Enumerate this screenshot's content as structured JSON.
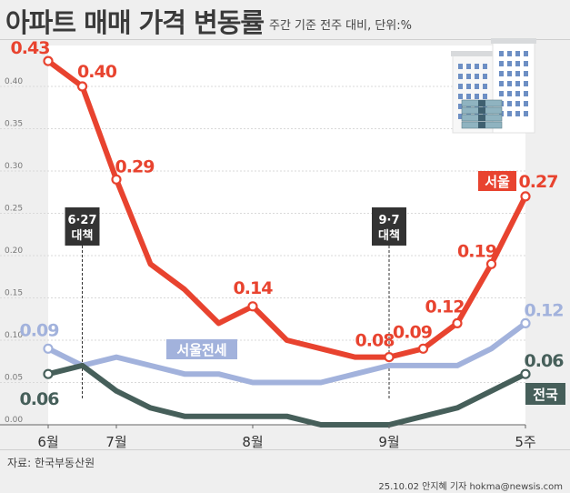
{
  "title": "아파트 매매 가격 변동률",
  "subtitle": "주간 기준 전주 대비, 단위:%",
  "source": "자료: 한국부동산원",
  "credit": "25.10.02 안지혜 기자 hokma@newsis.com",
  "colors": {
    "seoul": "#e8432f",
    "jeonse": "#a2b2dc",
    "national": "#465f5a",
    "axis": "#888888",
    "text": "#3a3a3a"
  },
  "chart_data": {
    "type": "line",
    "title": "아파트 매매 가격 변동률",
    "ylim": [
      0,
      0.45
    ],
    "y_ticks": [
      "0.00",
      "0.05",
      "0.10",
      "0.15",
      "0.20",
      "0.25",
      "0.30",
      "0.35",
      "0.40"
    ],
    "x_tick_labels": [
      {
        "label": "6월",
        "index": 0
      },
      {
        "label": "7월",
        "index": 2
      },
      {
        "label": "8월",
        "index": 6
      },
      {
        "label": "9월",
        "index": 10
      },
      {
        "label": "5주",
        "index": 14
      }
    ],
    "series": [
      {
        "name": "서울",
        "key": "seoul",
        "values": [
          0.43,
          0.4,
          0.29,
          0.19,
          0.16,
          0.12,
          0.14,
          0.1,
          0.09,
          0.08,
          0.08,
          0.09,
          0.12,
          0.19,
          0.27
        ],
        "labels": [
          "0.43",
          "0.40",
          "0.29",
          null,
          null,
          null,
          "0.14",
          null,
          null,
          null,
          "0.08",
          "0.09",
          "0.12",
          "0.19",
          "0.27"
        ]
      },
      {
        "name": "서울전세",
        "key": "jeonse",
        "values": [
          0.09,
          0.07,
          0.08,
          0.07,
          0.06,
          0.06,
          0.05,
          0.05,
          0.05,
          0.06,
          0.07,
          0.07,
          0.07,
          0.09,
          0.12
        ],
        "labels": [
          "0.09",
          null,
          null,
          null,
          null,
          null,
          null,
          null,
          null,
          null,
          null,
          null,
          null,
          null,
          "0.12"
        ]
      },
      {
        "name": "전국",
        "key": "national",
        "values": [
          0.06,
          0.07,
          0.04,
          0.02,
          0.01,
          0.01,
          0.01,
          0.01,
          0.0,
          0.0,
          0.0,
          0.01,
          0.02,
          0.04,
          0.06
        ],
        "labels": [
          "0.06",
          null,
          null,
          null,
          null,
          null,
          null,
          null,
          null,
          null,
          null,
          null,
          null,
          null,
          "0.06"
        ]
      }
    ],
    "annotations": [
      {
        "date": "6·27",
        "text": "대책",
        "index": 1
      },
      {
        "date": "9·7",
        "text": "대책",
        "index": 10
      }
    ]
  }
}
